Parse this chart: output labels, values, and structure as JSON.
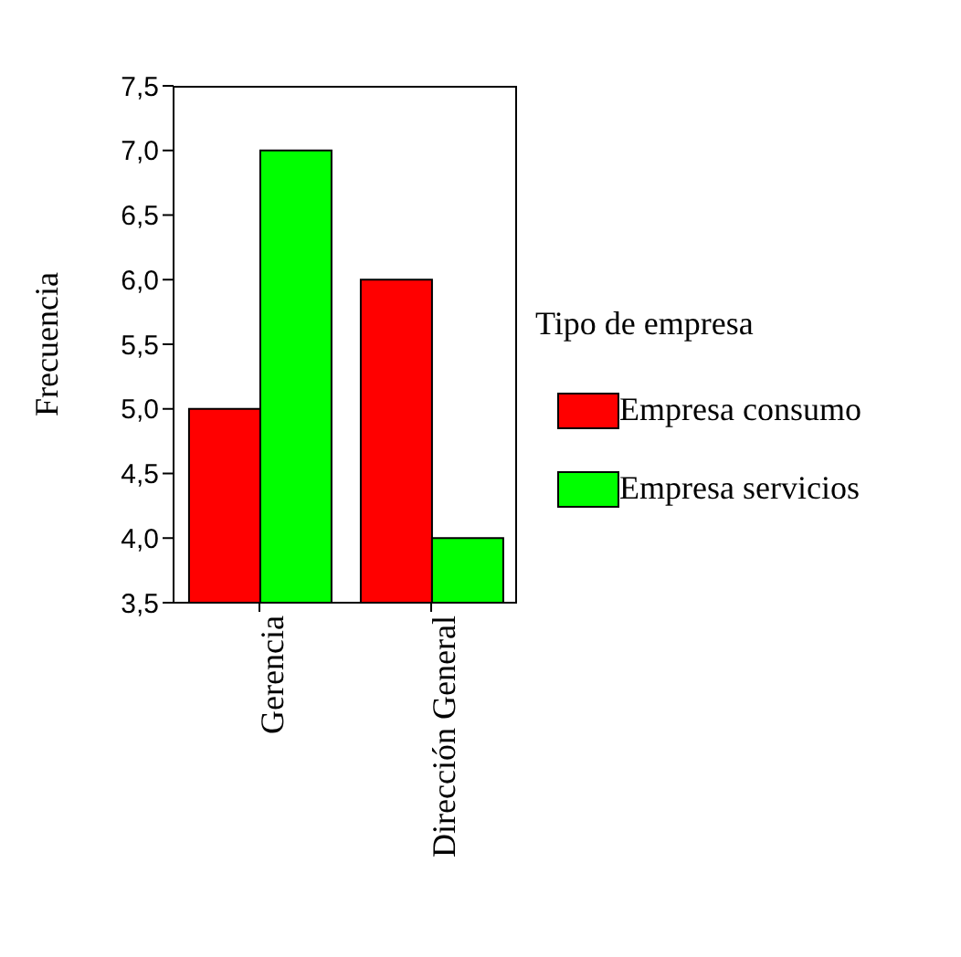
{
  "chart_data": {
    "type": "bar",
    "ylabel": "Frecuencia",
    "legend_title": "Tipo de empresa",
    "categories": [
      "Gerencia",
      "Dirección General"
    ],
    "series": [
      {
        "name": "Empresa consumo",
        "color": "#ff0000",
        "values": [
          5,
          6
        ]
      },
      {
        "name": "Empresa servicios",
        "color": "#00ff00",
        "values": [
          7,
          4
        ]
      }
    ],
    "ylim": [
      3.5,
      7.5
    ],
    "yticks": [
      {
        "value": 3.5,
        "label": "3,5"
      },
      {
        "value": 4,
        "label": "4,0"
      },
      {
        "value": 4.5,
        "label": "4,5"
      },
      {
        "value": 5,
        "label": "5,0"
      },
      {
        "value": 5.5,
        "label": "5,5"
      },
      {
        "value": 6,
        "label": "6,0"
      },
      {
        "value": 6.5,
        "label": "6,5"
      },
      {
        "value": 7,
        "label": "7,0"
      },
      {
        "value": 7.5,
        "label": "7,5"
      }
    ],
    "grid": false,
    "legend": "right"
  }
}
